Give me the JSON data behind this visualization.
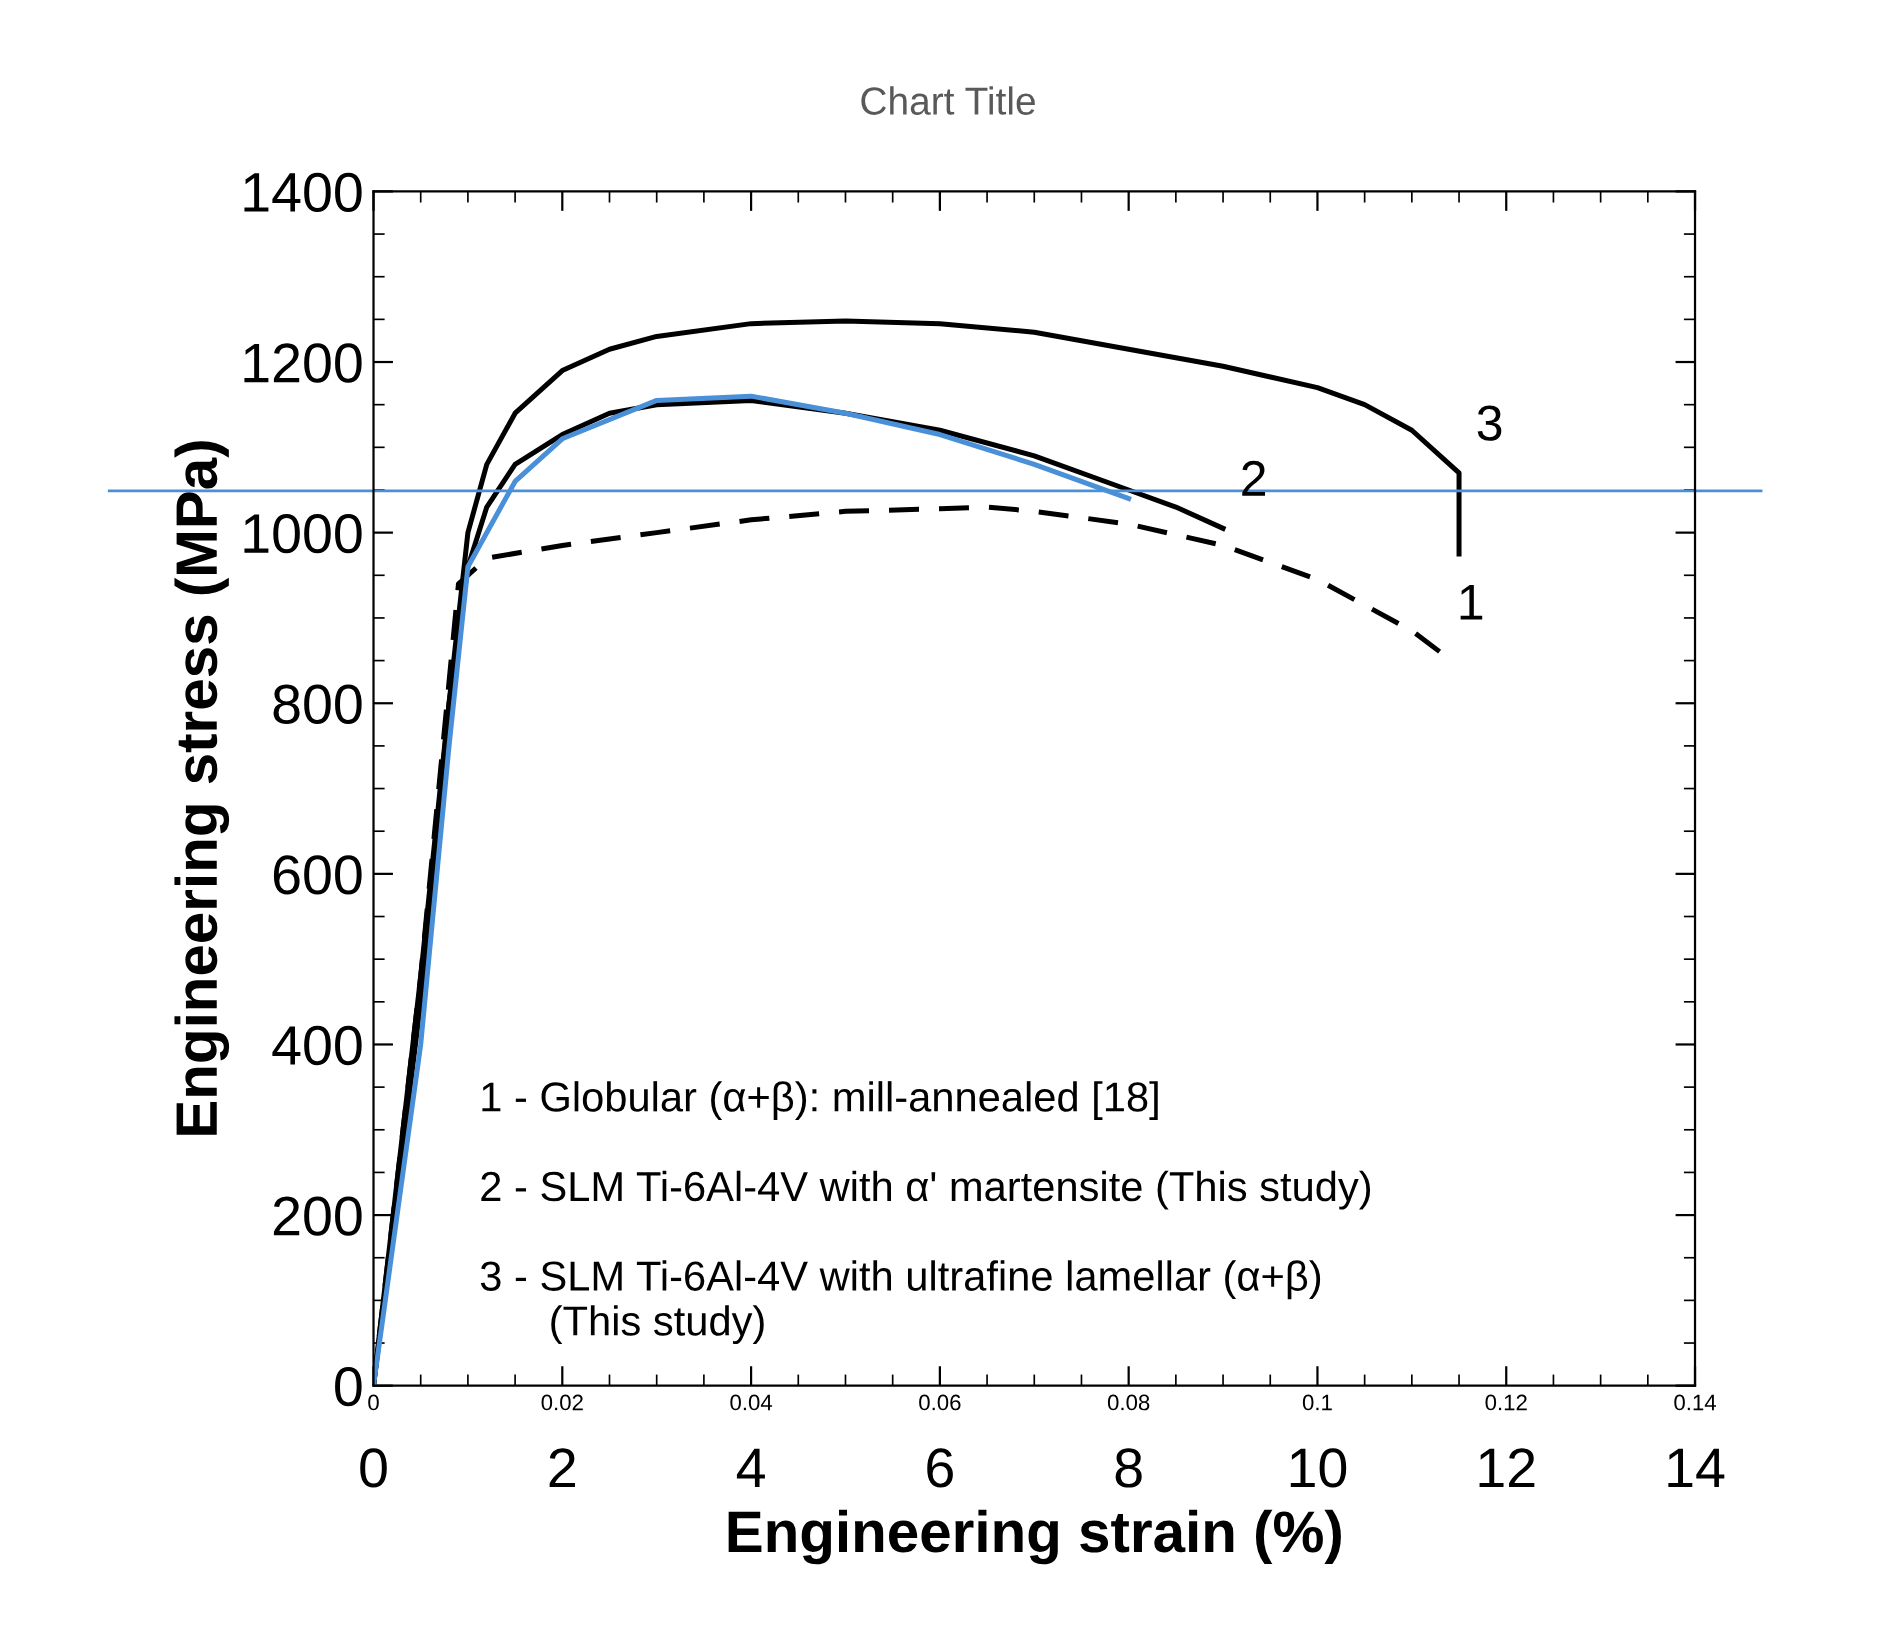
{
  "chart_data": {
    "type": "line",
    "title": "Chart Title",
    "xlabel": "Engineering strain (%)",
    "ylabel": "Engineering stress (MPa)",
    "xlim": [
      0,
      14
    ],
    "xticks": [
      0,
      2,
      4,
      6,
      8,
      10,
      12,
      14
    ],
    "ylim": [
      0,
      1400
    ],
    "yticks": [
      0,
      200,
      400,
      600,
      800,
      1000,
      1200,
      1400
    ],
    "x2lim": [
      0,
      0.14
    ],
    "x2ticks": [
      {
        "value": 0,
        "label": "0"
      },
      0.02,
      0.04,
      0.06,
      0.08,
      0.1,
      0.12,
      0.14
    ],
    "grid": false,
    "marker": "none",
    "series": [
      {
        "name": "1",
        "color": "#000000",
        "line_style": "dashed",
        "x": [
          0,
          0.5,
          0.9,
          1.2,
          2,
          3,
          4,
          5,
          6,
          6.5,
          7,
          8,
          9,
          10,
          11,
          11.3
        ],
        "values": [
          0,
          480,
          940,
          970,
          985,
          1000,
          1015,
          1025,
          1028,
          1030,
          1025,
          1010,
          985,
          945,
          885,
          860
        ]
      },
      {
        "name": "2",
        "color": "#000000",
        "line_style": "solid",
        "x": [
          0,
          0.5,
          0.8,
          1,
          1.2,
          1.5,
          2,
          2.5,
          3,
          4,
          5,
          6,
          7,
          8,
          8.5,
          9
        ],
        "values": [
          0,
          480,
          800,
          960,
          1030,
          1080,
          1115,
          1140,
          1150,
          1155,
          1140,
          1120,
          1090,
          1050,
          1030,
          1005
        ]
      },
      {
        "name": "3",
        "color": "#000000",
        "line_style": "solid",
        "x": [
          0,
          0.5,
          0.8,
          1,
          1.2,
          1.5,
          2,
          2.5,
          3,
          4,
          5,
          6,
          7,
          8,
          9,
          10,
          10.5,
          11,
          11.4,
          11.5,
          11.5
        ],
        "values": [
          0,
          450,
          800,
          1000,
          1080,
          1140,
          1190,
          1215,
          1230,
          1245,
          1248,
          1245,
          1235,
          1215,
          1195,
          1170,
          1150,
          1120,
          1080,
          1070,
          975
        ]
      },
      {
        "color": "#4a90d9",
        "line_style": "solid",
        "x": [
          0,
          0.5,
          0.8,
          1,
          1.5,
          2,
          3,
          4,
          5,
          6,
          7,
          8
        ],
        "values": [
          0,
          400,
          750,
          960,
          1060,
          1110,
          1155,
          1160,
          1140,
          1115,
          1080,
          1040
        ]
      }
    ],
    "ref_lines": [
      {
        "axis": "y",
        "value": 1049,
        "color": "#4a90d9"
      }
    ],
    "annotations": [
      "1 - Globular (α+β): mill-annealed [18]",
      "2 - SLM Ti-6Al-4V with α' martensite (This study)",
      "3 - SLM Ti-6Al-4V with ultrafine lamellar (α+β)\n      (This study)"
    ]
  }
}
